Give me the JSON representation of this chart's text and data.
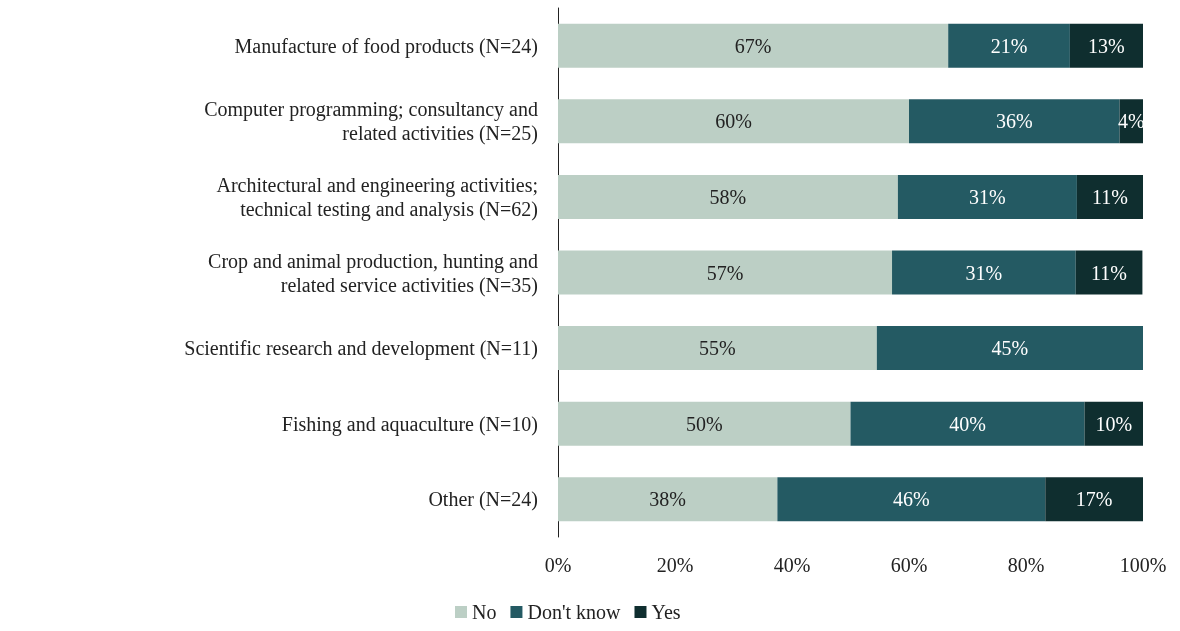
{
  "chart_data": {
    "type": "bar",
    "orientation": "horizontal",
    "stacked": true,
    "categories": [
      "Manufacture of food products (N=24)",
      "Computer programming; consultancy and related activities (N=25)",
      "Architectural and engineering activities; technical testing and analysis (N=62)",
      "Crop and animal production, hunting and related service activities (N=35)",
      "Scientific research and development (N=11)",
      "Fishing and aquaculture (N=10)",
      "Other (N=24)"
    ],
    "series": [
      {
        "name": "No",
        "color": "#bccfc5",
        "values": [
          66.7,
          60,
          58.1,
          57.1,
          54.5,
          50,
          37.5
        ],
        "value_labels": [
          "67%",
          "60%",
          "58%",
          "57%",
          "55%",
          "50%",
          "38%"
        ]
      },
      {
        "name": "Don't know",
        "color": "#245a63",
        "values": [
          20.8,
          36,
          30.6,
          31.4,
          45.5,
          40,
          45.8
        ],
        "value_labels": [
          "21%",
          "36%",
          "31%",
          "31%",
          "45%",
          "40%",
          "46%"
        ]
      },
      {
        "name": "Yes",
        "color": "#0f2e2f",
        "values": [
          12.5,
          4,
          11.3,
          11.4,
          null,
          10,
          16.7
        ],
        "value_labels": [
          "13%",
          "4%",
          "11%",
          "11%",
          null,
          "10%",
          "17%"
        ]
      }
    ],
    "xlim": [
      0,
      100
    ],
    "xticks": [
      {
        "value": 0,
        "label": "0%"
      },
      {
        "value": 20,
        "label": "20%"
      },
      {
        "value": 40,
        "label": "40%"
      },
      {
        "value": 60,
        "label": "60%"
      },
      {
        "value": 80,
        "label": "80%"
      },
      {
        "value": 100,
        "label": "100%"
      }
    ],
    "grid": false,
    "legend": "bottom"
  }
}
